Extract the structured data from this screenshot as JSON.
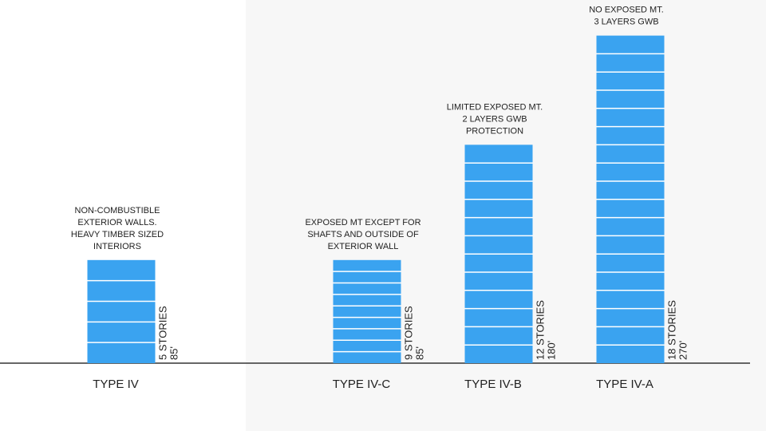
{
  "chart_data": {
    "type": "bar",
    "categories": [
      "TYPE IV",
      "TYPE IV-C",
      "TYPE IV-B",
      "TYPE IV-A"
    ],
    "values": [
      85,
      85,
      180,
      270
    ],
    "value_labels": [
      "85'",
      "85'",
      "180'",
      "270'"
    ],
    "stories": [
      5,
      9,
      12,
      18
    ],
    "stories_labels": [
      "5 STORIES",
      "9 STORIES",
      "12 STORIES",
      "18 STORIES"
    ],
    "annotations": [
      [
        "NON-COMBUSTIBLE",
        "EXTERIOR WALLS.",
        "HEAVY TIMBER SIZED",
        "INTERIORS"
      ],
      [
        "EXPOSED MT EXCEPT FOR",
        "SHAFTS AND OUTSIDE OF",
        "EXTERIOR WALL"
      ],
      [
        "LIMITED EXPOSED MT.",
        "2 LAYERS GWB",
        "PROTECTION"
      ],
      [
        "NO EXPOSED MT.",
        "3 LAYERS GWB"
      ]
    ],
    "color": "#3aa3f0"
  }
}
